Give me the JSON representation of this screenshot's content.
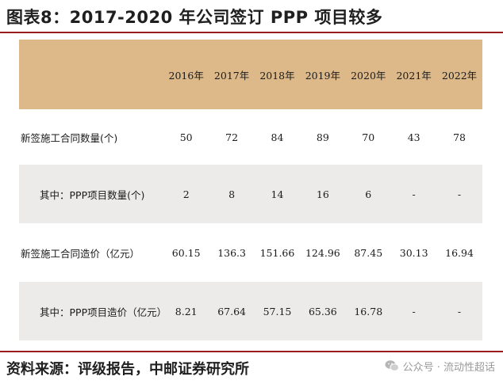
{
  "title": "图表8：2017-2020 年公司签订 PPP 项目较多",
  "table": {
    "headers": [
      "2016年",
      "2017年",
      "2018年",
      "2019年",
      "2020年",
      "2021年",
      "2022年"
    ],
    "rows": [
      {
        "label": "新签施工合同数量(个)",
        "values": [
          "50",
          "72",
          "84",
          "89",
          "70",
          "43",
          "78"
        ]
      },
      {
        "label": "其中：PPP项目数量(个)",
        "values": [
          "2",
          "8",
          "14",
          "16",
          "6",
          "-",
          "-"
        ]
      },
      {
        "label": "新签施工合同造价（亿元）",
        "values": [
          "60.15",
          "136.3",
          "151.66",
          "124.96",
          "87.45",
          "30.13",
          "16.94"
        ]
      },
      {
        "label": "其中：PPP项目造价（亿元）",
        "values": [
          "8.21",
          "67.64",
          "57.15",
          "65.36",
          "16.78",
          "-",
          "-"
        ]
      }
    ]
  },
  "source": "资料来源：评级报告，中邮证券研究所",
  "watermark": "公众号 · 流动性超话",
  "colors": {
    "header_bg": "#ddb98a",
    "shaded_bg": "#ecebea",
    "rule": "#9b1c1c"
  },
  "icons": {
    "watermark": "wechat-icon"
  }
}
